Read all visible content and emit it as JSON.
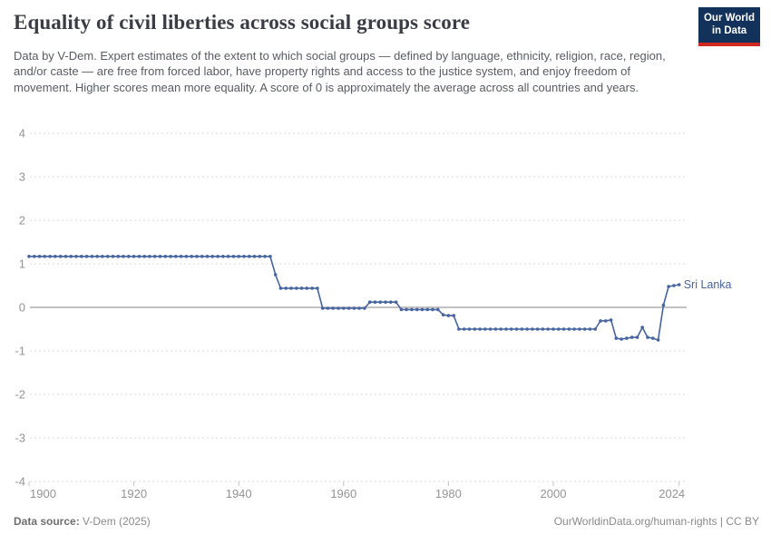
{
  "header": {
    "title": "Equality of civil liberties across social groups score",
    "subtitle": "Data by V-Dem. Expert estimates of the extent to which social groups — defined by language, ethnicity, religion, race, region, and/or caste — are free from forced labor, have property rights and access to the justice system, and enjoy freedom of movement. Higher scores mean more equality. A score of 0 is approximately the average across all countries and years.",
    "logo": {
      "line1": "Our World",
      "line2": "in Data"
    }
  },
  "footer": {
    "source_label": "Data source:",
    "source_value": " V-Dem (2025)",
    "link": "OurWorldinData.org/human-rights | CC BY"
  },
  "colors": {
    "line": "#4664a0",
    "grid_dashed": "#d8d8d8",
    "zero_line": "#9e9e9e",
    "axis_text": "#949494",
    "logo_navy": "#13325b",
    "logo_red": "#d0291f"
  },
  "chart_data": {
    "type": "line",
    "title": "Equality of civil liberties across social groups score",
    "xlabel": "",
    "ylabel": "",
    "xlim": [
      1900,
      2024
    ],
    "ylim": [
      -4,
      4
    ],
    "grid": "horizontal dashed gridlines, solid line at 0",
    "legend_position": "end-of-line label",
    "x_ticks": [
      1900,
      1920,
      1940,
      1960,
      1980,
      2000,
      2024
    ],
    "x_tick_labels": [
      "1900",
      "1920",
      "1940",
      "1960",
      "1980",
      "2000",
      "2024"
    ],
    "y_ticks": [
      4,
      3,
      2,
      1,
      0,
      -1,
      -2,
      -3,
      -4
    ],
    "y_tick_labels": [
      "4",
      "3",
      "2",
      "1",
      "0",
      "-1",
      "-2",
      "-3",
      "-4"
    ],
    "year_start": 1900,
    "year_end": 2024,
    "series": [
      {
        "name": "Sri Lanka",
        "color": "#4664a0",
        "values": [
          1.17,
          1.17,
          1.17,
          1.17,
          1.17,
          1.17,
          1.17,
          1.17,
          1.17,
          1.17,
          1.17,
          1.17,
          1.17,
          1.17,
          1.17,
          1.17,
          1.17,
          1.17,
          1.17,
          1.17,
          1.17,
          1.17,
          1.17,
          1.17,
          1.17,
          1.17,
          1.17,
          1.17,
          1.17,
          1.17,
          1.17,
          1.17,
          1.17,
          1.17,
          1.17,
          1.17,
          1.17,
          1.17,
          1.17,
          1.17,
          1.17,
          1.17,
          1.17,
          1.17,
          1.17,
          1.17,
          1.17,
          0.75,
          0.44,
          0.44,
          0.44,
          0.44,
          0.44,
          0.44,
          0.44,
          0.44,
          -0.02,
          -0.02,
          -0.02,
          -0.02,
          -0.02,
          -0.02,
          -0.02,
          -0.02,
          -0.02,
          0.12,
          0.12,
          0.12,
          0.12,
          0.12,
          0.12,
          -0.05,
          -0.05,
          -0.05,
          -0.05,
          -0.05,
          -0.05,
          -0.05,
          -0.05,
          -0.17,
          -0.19,
          -0.19,
          -0.5,
          -0.5,
          -0.5,
          -0.5,
          -0.5,
          -0.5,
          -0.5,
          -0.5,
          -0.5,
          -0.5,
          -0.5,
          -0.5,
          -0.5,
          -0.5,
          -0.5,
          -0.5,
          -0.5,
          -0.5,
          -0.5,
          -0.5,
          -0.5,
          -0.5,
          -0.5,
          -0.5,
          -0.5,
          -0.5,
          -0.5,
          -0.31,
          -0.31,
          -0.29,
          -0.71,
          -0.73,
          -0.71,
          -0.69,
          -0.69,
          -0.46,
          -0.69,
          -0.71,
          -0.75,
          0.05,
          0.48,
          0.5,
          0.52
        ]
      }
    ]
  }
}
